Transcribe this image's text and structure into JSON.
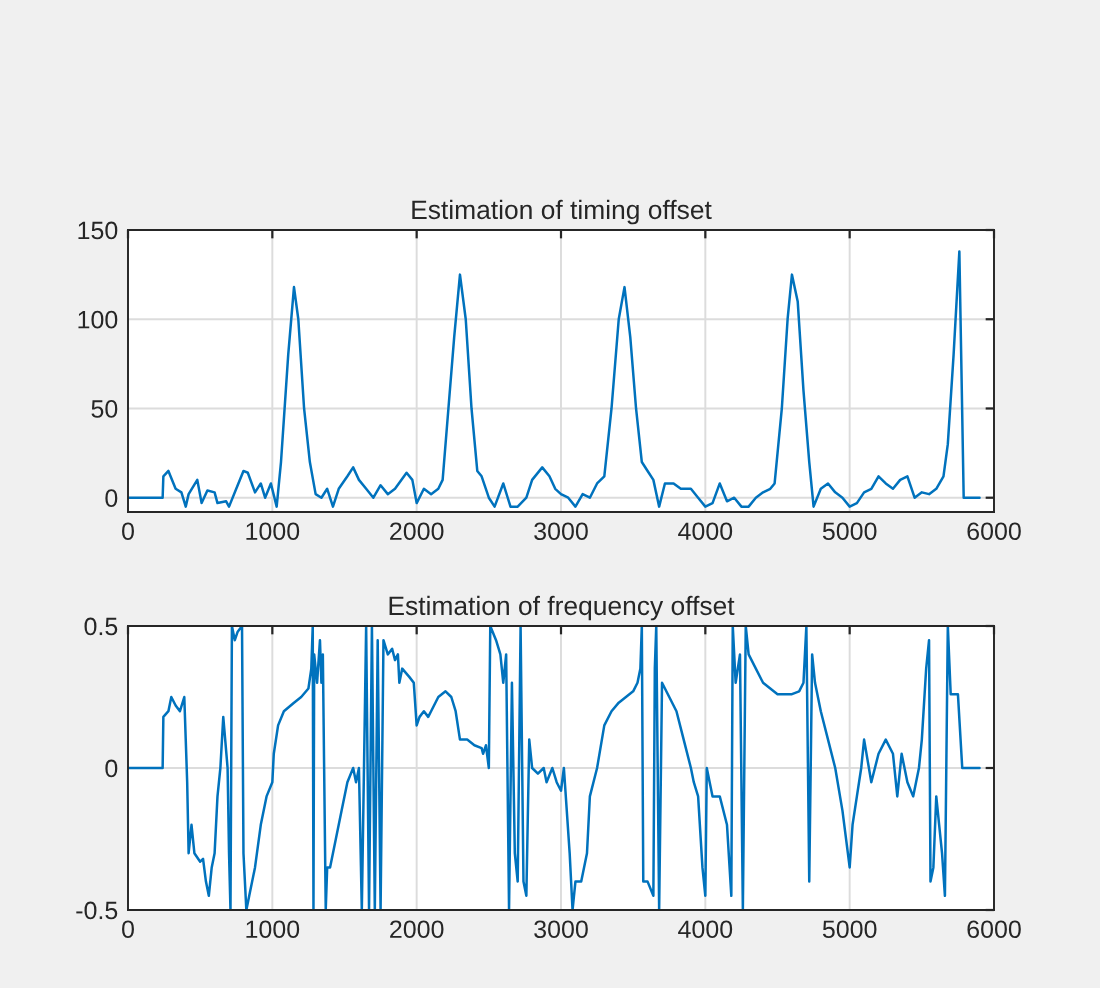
{
  "chart_data": [
    {
      "type": "line",
      "title": "Estimation of timing offset",
      "xlim": [
        0,
        6000
      ],
      "xticks": [
        0,
        1000,
        2000,
        3000,
        4000,
        5000,
        6000
      ],
      "ylim": [
        -8,
        150
      ],
      "yticks": [
        0,
        50,
        100,
        150
      ],
      "grid": true,
      "series": [
        {
          "color": "#0072bd",
          "x": [
            0,
            240,
            245,
            280,
            330,
            370,
            400,
            420,
            480,
            510,
            550,
            600,
            620,
            680,
            700,
            750,
            800,
            830,
            880,
            920,
            950,
            990,
            1030,
            1060,
            1110,
            1150,
            1180,
            1220,
            1260,
            1300,
            1340,
            1380,
            1420,
            1460,
            1520,
            1560,
            1600,
            1650,
            1700,
            1750,
            1800,
            1850,
            1930,
            1970,
            2000,
            2050,
            2100,
            2150,
            2180,
            2220,
            2260,
            2300,
            2340,
            2380,
            2420,
            2450,
            2500,
            2540,
            2600,
            2650,
            2700,
            2760,
            2800,
            2870,
            2920,
            2960,
            3000,
            3050,
            3100,
            3150,
            3200,
            3250,
            3300,
            3350,
            3400,
            3440,
            3480,
            3520,
            3560,
            3600,
            3640,
            3680,
            3720,
            3780,
            3830,
            3900,
            3950,
            4000,
            4050,
            4100,
            4150,
            4200,
            4250,
            4300,
            4350,
            4400,
            4450,
            4480,
            4530,
            4570,
            4600,
            4640,
            4680,
            4720,
            4750,
            4800,
            4850,
            4900,
            4950,
            5000,
            5050,
            5100,
            5150,
            5200,
            5250,
            5300,
            5350,
            5400,
            5450,
            5500,
            5550,
            5600,
            5650,
            5680,
            5720,
            5760,
            5790,
            5900
          ],
          "values": [
            0,
            0,
            12,
            15,
            5,
            3,
            -5,
            2,
            10,
            -3,
            4,
            3,
            -3,
            -2,
            -5,
            5,
            15,
            14,
            3,
            8,
            0,
            8,
            -5,
            20,
            80,
            118,
            100,
            50,
            20,
            2,
            0,
            5,
            -5,
            5,
            12,
            17,
            10,
            5,
            0,
            7,
            2,
            5,
            14,
            10,
            -3,
            5,
            2,
            5,
            10,
            50,
            90,
            125,
            100,
            50,
            15,
            12,
            0,
            -5,
            8,
            -5,
            -5,
            0,
            10,
            17,
            12,
            5,
            2,
            0,
            -5,
            2,
            0,
            8,
            12,
            50,
            100,
            118,
            90,
            50,
            20,
            15,
            10,
            -5,
            8,
            8,
            5,
            5,
            0,
            -5,
            -3,
            8,
            -2,
            0,
            -5,
            -5,
            0,
            3,
            5,
            8,
            50,
            100,
            125,
            110,
            60,
            20,
            -5,
            5,
            8,
            3,
            0,
            -5,
            -3,
            3,
            5,
            12,
            8,
            5,
            10,
            12,
            0,
            3,
            2,
            5,
            12,
            30,
            80,
            138,
            0,
            0
          ]
        }
      ]
    },
    {
      "type": "line",
      "title": "Estimation of frequency offset",
      "xlim": [
        0,
        6000
      ],
      "xticks": [
        0,
        1000,
        2000,
        3000,
        4000,
        5000,
        6000
      ],
      "ylim": [
        -0.5,
        0.5
      ],
      "yticks": [
        -0.5,
        0,
        0.5
      ],
      "grid": true,
      "series": [
        {
          "color": "#0072bd",
          "x": [
            0,
            240,
            245,
            280,
            300,
            330,
            360,
            390,
            400,
            410,
            420,
            440,
            460,
            500,
            520,
            540,
            560,
            580,
            600,
            620,
            640,
            660,
            690,
            700,
            710,
            720,
            740,
            760,
            790,
            800,
            820,
            840,
            880,
            920,
            960,
            1000,
            1010,
            1040,
            1080,
            1150,
            1200,
            1250,
            1270,
            1280,
            1285,
            1290,
            1310,
            1330,
            1340,
            1350,
            1370,
            1380,
            1400,
            1440,
            1480,
            1520,
            1560,
            1580,
            1600,
            1620,
            1650,
            1670,
            1690,
            1710,
            1730,
            1750,
            1770,
            1800,
            1830,
            1850,
            1870,
            1880,
            1900,
            1950,
            1980,
            2000,
            2020,
            2050,
            2080,
            2100,
            2150,
            2200,
            2240,
            2270,
            2300,
            2350,
            2400,
            2450,
            2460,
            2480,
            2500,
            2510,
            2550,
            2580,
            2600,
            2620,
            2640,
            2660,
            2680,
            2700,
            2720,
            2740,
            2760,
            2780,
            2800,
            2840,
            2880,
            2900,
            2940,
            2970,
            3000,
            3020,
            3060,
            3080,
            3100,
            3140,
            3180,
            3200,
            3250,
            3300,
            3350,
            3400,
            3450,
            3500,
            3530,
            3550,
            3560,
            3570,
            3600,
            3640,
            3650,
            3660,
            3680,
            3700,
            3750,
            3800,
            3850,
            3900,
            3920,
            3950,
            3980,
            4000,
            4010,
            4050,
            4100,
            4150,
            4180,
            4190,
            4210,
            4240,
            4260,
            4280,
            4300,
            4350,
            4400,
            4450,
            4500,
            4550,
            4600,
            4650,
            4680,
            4700,
            4720,
            4740,
            4760,
            4800,
            4850,
            4900,
            4950,
            5000,
            5020,
            5050,
            5080,
            5100,
            5150,
            5200,
            5250,
            5300,
            5330,
            5360,
            5400,
            5440,
            5480,
            5500,
            5530,
            5550,
            5560,
            5580,
            5600,
            5620,
            5640,
            5660,
            5680,
            5700,
            5750,
            5780,
            5900
          ],
          "values": [
            0,
            0,
            0.18,
            0.2,
            0.25,
            0.22,
            0.2,
            0.25,
            0.1,
            -0.05,
            -0.3,
            -0.2,
            -0.3,
            -0.33,
            -0.32,
            -0.4,
            -0.45,
            -0.35,
            -0.3,
            -0.1,
            0.0,
            0.18,
            0.0,
            -0.3,
            -0.5,
            0.5,
            0.45,
            0.48,
            0.5,
            -0.3,
            -0.5,
            -0.45,
            -0.35,
            -0.2,
            -0.1,
            -0.05,
            0.05,
            0.15,
            0.2,
            0.23,
            0.25,
            0.28,
            0.35,
            0.5,
            -0.5,
            0.4,
            0.3,
            0.45,
            0.3,
            0.4,
            -0.5,
            -0.35,
            -0.35,
            -0.25,
            -0.15,
            -0.05,
            0.0,
            -0.05,
            0.0,
            -0.5,
            0.5,
            -0.5,
            0.5,
            -0.5,
            0.45,
            -0.5,
            0.45,
            0.4,
            0.42,
            0.38,
            0.4,
            0.3,
            0.35,
            0.32,
            0.3,
            0.15,
            0.18,
            0.2,
            0.18,
            0.2,
            0.25,
            0.27,
            0.25,
            0.2,
            0.1,
            0.1,
            0.08,
            0.07,
            0.05,
            0.08,
            0.0,
            0.5,
            0.45,
            0.4,
            0.3,
            0.4,
            -0.5,
            0.3,
            -0.3,
            -0.4,
            0.5,
            -0.4,
            -0.45,
            0.1,
            0.0,
            -0.02,
            0.0,
            -0.05,
            0.0,
            -0.05,
            -0.08,
            0.0,
            -0.3,
            -0.5,
            -0.4,
            -0.4,
            -0.3,
            -0.1,
            0.0,
            0.15,
            0.2,
            0.23,
            0.25,
            0.27,
            0.3,
            0.35,
            0.5,
            -0.4,
            -0.4,
            -0.45,
            0.35,
            0.5,
            -0.5,
            0.3,
            0.25,
            0.2,
            0.1,
            0.0,
            -0.05,
            -0.1,
            -0.35,
            -0.45,
            0.0,
            -0.1,
            -0.1,
            -0.2,
            -0.45,
            0.5,
            0.3,
            0.4,
            -0.5,
            0.5,
            0.4,
            0.35,
            0.3,
            0.28,
            0.26,
            0.26,
            0.26,
            0.27,
            0.3,
            0.5,
            -0.4,
            0.4,
            0.3,
            0.2,
            0.1,
            0.0,
            -0.15,
            -0.35,
            -0.2,
            -0.1,
            0.0,
            0.1,
            -0.05,
            0.05,
            0.1,
            0.05,
            -0.1,
            0.05,
            -0.05,
            -0.1,
            0.0,
            0.1,
            0.35,
            0.45,
            -0.4,
            -0.35,
            -0.1,
            -0.2,
            -0.3,
            -0.45,
            0.5,
            0.26,
            0.26,
            0.0,
            0.0
          ]
        }
      ]
    }
  ]
}
